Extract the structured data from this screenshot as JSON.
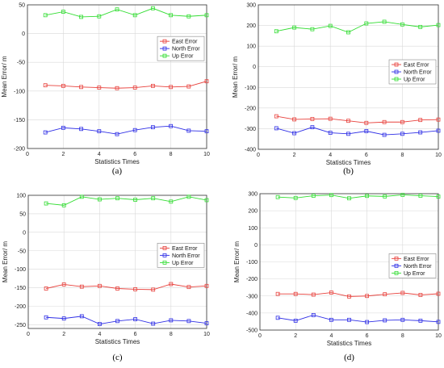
{
  "colors": {
    "east": "#e8413c",
    "north": "#2f2fe6",
    "up": "#33dd33",
    "grid": "#d9d9d9",
    "axis": "#333333"
  },
  "chart_data": [
    {
      "type": "line",
      "caption": "(a)",
      "xlabel": "Statistics Times",
      "ylabel": "Mean Error/ m",
      "xlim": [
        0,
        10
      ],
      "ylim": [
        -200,
        50
      ],
      "xticks": [
        0,
        2,
        4,
        6,
        8,
        10
      ],
      "yticks": [
        -200,
        -150,
        -100,
        -50,
        0,
        50
      ],
      "grid": true,
      "legend_position": "right",
      "x": [
        1,
        2,
        3,
        4,
        5,
        6,
        7,
        8,
        9,
        10
      ],
      "series": [
        {
          "name": "East Error",
          "color_key": "east",
          "values": [
            -90,
            -91,
            -93,
            -94,
            -95,
            -94,
            -91,
            -93,
            -92,
            -83
          ]
        },
        {
          "name": "North Error",
          "color_key": "north",
          "values": [
            -172,
            -164,
            -166,
            -170,
            -175,
            -168,
            -163,
            -161,
            -169,
            -170
          ]
        },
        {
          "name": "Up Error",
          "color_key": "up",
          "values": [
            32,
            38,
            29,
            30,
            42,
            32,
            44,
            32,
            30,
            32
          ]
        }
      ]
    },
    {
      "type": "line",
      "caption": "(b)",
      "xlabel": "Statistics Times",
      "ylabel": "Mean Error/ m",
      "xlim": [
        0,
        10
      ],
      "ylim": [
        -400,
        300
      ],
      "xticks": [
        0,
        2,
        4,
        6,
        8,
        10
      ],
      "yticks": [
        -400,
        -300,
        -200,
        -100,
        0,
        100,
        200,
        300
      ],
      "grid": true,
      "legend_position": "right",
      "x": [
        1,
        2,
        3,
        4,
        5,
        6,
        7,
        8,
        9,
        10
      ],
      "series": [
        {
          "name": "East Error",
          "color_key": "east",
          "values": [
            -240,
            -255,
            -253,
            -252,
            -262,
            -272,
            -268,
            -268,
            -258,
            -256
          ]
        },
        {
          "name": "North Error",
          "color_key": "north",
          "values": [
            -298,
            -322,
            -293,
            -320,
            -325,
            -312,
            -330,
            -325,
            -318,
            -310
          ]
        },
        {
          "name": "Up Error",
          "color_key": "up",
          "values": [
            172,
            190,
            182,
            198,
            167,
            210,
            218,
            205,
            193,
            202
          ]
        }
      ]
    },
    {
      "type": "line",
      "caption": "(c)",
      "xlabel": "Statistics Times",
      "ylabel": "Mean Error/ m",
      "xlim": [
        0,
        10
      ],
      "ylim": [
        -260,
        100
      ],
      "xticks": [
        0,
        2,
        4,
        6,
        8,
        10
      ],
      "yticks": [
        -250,
        -200,
        -150,
        -100,
        -50,
        0,
        50,
        100
      ],
      "grid": true,
      "legend_position": "right",
      "x": [
        1,
        2,
        3,
        4,
        5,
        6,
        7,
        8,
        9,
        10
      ],
      "series": [
        {
          "name": "East Error",
          "color_key": "east",
          "values": [
            -152,
            -141,
            -147,
            -145,
            -152,
            -154,
            -155,
            -140,
            -148,
            -145
          ]
        },
        {
          "name": "North Error",
          "color_key": "north",
          "values": [
            -230,
            -233,
            -227,
            -248,
            -240,
            -235,
            -247,
            -238,
            -240,
            -246
          ]
        },
        {
          "name": "Up Error",
          "color_key": "up",
          "values": [
            78,
            73,
            96,
            89,
            92,
            88,
            92,
            83,
            96,
            87
          ]
        }
      ]
    },
    {
      "type": "line",
      "caption": "(d)",
      "xlabel": "Statistics Times",
      "ylabel": "Mean Error/ m",
      "xlim": [
        0,
        10
      ],
      "ylim": [
        -500,
        300
      ],
      "xticks": [
        0,
        2,
        4,
        6,
        8,
        10
      ],
      "yticks": [
        -500,
        -400,
        -300,
        -200,
        -100,
        0,
        100,
        200,
        300
      ],
      "grid": true,
      "legend_position": "right",
      "x": [
        1,
        2,
        3,
        4,
        5,
        6,
        7,
        8,
        9,
        10
      ],
      "series": [
        {
          "name": "East Error",
          "color_key": "east",
          "values": [
            -288,
            -288,
            -292,
            -280,
            -303,
            -300,
            -290,
            -282,
            -294,
            -287
          ]
        },
        {
          "name": "North Error",
          "color_key": "north",
          "values": [
            -428,
            -445,
            -412,
            -440,
            -440,
            -453,
            -443,
            -440,
            -445,
            -452
          ]
        },
        {
          "name": "Up Error",
          "color_key": "up",
          "values": [
            280,
            275,
            288,
            292,
            273,
            287,
            284,
            293,
            288,
            283
          ]
        }
      ]
    }
  ]
}
